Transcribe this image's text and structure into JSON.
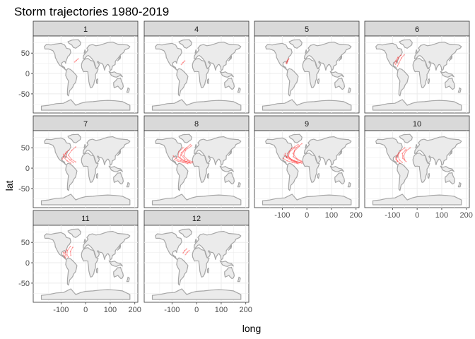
{
  "chart_data": {
    "type": "scatter",
    "title": "Storm trajectories 1980-2019",
    "xlabel": "long",
    "ylabel": "lat",
    "xlim": [
      -190,
      195
    ],
    "ylim": [
      -90,
      85
    ],
    "x_ticks": [
      -100,
      0,
      100,
      200
    ],
    "y_ticks": [
      -50,
      0,
      50
    ],
    "x_tick_labels": [
      "-100",
      "0",
      "100",
      "200"
    ],
    "y_tick_labels": [
      "-50",
      "0",
      "50"
    ],
    "grid": true,
    "background": "world-map",
    "facet_variable": "month",
    "panels": [
      {
        "label": "1",
        "tracks": [
          [
            [
              -45,
              28
            ],
            [
              -38,
              32
            ],
            [
              -30,
              36
            ]
          ]
        ]
      },
      {
        "label": "4",
        "tracks": [
          [
            [
              -62,
              22
            ],
            [
              -55,
              27
            ],
            [
              -48,
              31
            ]
          ]
        ]
      },
      {
        "label": "5",
        "tracks": [
          [
            [
              -82,
              24
            ],
            [
              -78,
              30
            ],
            [
              -73,
              36
            ]
          ],
          [
            [
              -85,
              26
            ],
            [
              -80,
              31
            ],
            [
              -76,
              35
            ]
          ]
        ]
      },
      {
        "label": "6",
        "tracks": [
          [
            [
              -88,
              22
            ],
            [
              -83,
              30
            ],
            [
              -76,
              38
            ],
            [
              -66,
              45
            ]
          ],
          [
            [
              -92,
              25
            ],
            [
              -86,
              32
            ],
            [
              -78,
              40
            ]
          ],
          [
            [
              -80,
              18
            ],
            [
              -74,
              26
            ],
            [
              -64,
              38
            ],
            [
              -52,
              46
            ]
          ]
        ]
      },
      {
        "label": "7",
        "tracks": [
          [
            [
              -50,
              14
            ],
            [
              -64,
              20
            ],
            [
              -78,
              28
            ],
            [
              -82,
              36
            ],
            [
              -70,
              44
            ]
          ],
          [
            [
              -60,
              12
            ],
            [
              -75,
              18
            ],
            [
              -88,
              26
            ],
            [
              -90,
              34
            ]
          ],
          [
            [
              -40,
              15
            ],
            [
              -58,
              22
            ],
            [
              -70,
              32
            ],
            [
              -56,
              44
            ],
            [
              -40,
              52
            ]
          ],
          [
            [
              -95,
              22
            ],
            [
              -88,
              30
            ],
            [
              -78,
              40
            ]
          ]
        ]
      },
      {
        "label": "8",
        "tracks": [
          [
            [
              -20,
              13
            ],
            [
              -40,
              16
            ],
            [
              -60,
              20
            ],
            [
              -75,
              28
            ],
            [
              -72,
              40
            ],
            [
              -55,
              50
            ]
          ],
          [
            [
              -25,
              12
            ],
            [
              -45,
              15
            ],
            [
              -65,
              18
            ],
            [
              -85,
              24
            ],
            [
              -95,
              30
            ]
          ],
          [
            [
              -30,
              14
            ],
            [
              -50,
              18
            ],
            [
              -68,
              26
            ],
            [
              -62,
              38
            ],
            [
              -40,
              50
            ]
          ],
          [
            [
              -35,
              11
            ],
            [
              -55,
              14
            ],
            [
              -75,
              17
            ],
            [
              -90,
              21
            ]
          ],
          [
            [
              -15,
              15
            ],
            [
              -35,
              20
            ],
            [
              -52,
              30
            ],
            [
              -45,
              44
            ],
            [
              -20,
              55
            ]
          ],
          [
            [
              -28,
              16
            ],
            [
              -48,
              22
            ],
            [
              -62,
              32
            ],
            [
              -48,
              46
            ],
            [
              -25,
              58
            ]
          ]
        ]
      },
      {
        "label": "9",
        "tracks": [
          [
            [
              -20,
              12
            ],
            [
              -40,
              15
            ],
            [
              -60,
              20
            ],
            [
              -75,
              28
            ],
            [
              -70,
              40
            ],
            [
              -50,
              50
            ]
          ],
          [
            [
              -25,
              14
            ],
            [
              -45,
              17
            ],
            [
              -65,
              22
            ],
            [
              -82,
              28
            ],
            [
              -92,
              32
            ]
          ],
          [
            [
              -30,
              13
            ],
            [
              -52,
              17
            ],
            [
              -70,
              24
            ],
            [
              -78,
              36
            ],
            [
              -62,
              48
            ],
            [
              -35,
              58
            ]
          ],
          [
            [
              -18,
              15
            ],
            [
              -38,
              20
            ],
            [
              -55,
              28
            ],
            [
              -50,
              42
            ],
            [
              -30,
              54
            ]
          ],
          [
            [
              -35,
              11
            ],
            [
              -58,
              14
            ],
            [
              -80,
              18
            ],
            [
              -96,
              24
            ]
          ],
          [
            [
              -22,
              17
            ],
            [
              -42,
              24
            ],
            [
              -56,
              36
            ],
            [
              -44,
              50
            ],
            [
              -20,
              60
            ]
          ],
          [
            [
              -40,
              13
            ],
            [
              -62,
              18
            ],
            [
              -84,
              26
            ],
            [
              -88,
              36
            ]
          ]
        ]
      },
      {
        "label": "10",
        "tracks": [
          [
            [
              -60,
              14
            ],
            [
              -72,
              20
            ],
            [
              -78,
              30
            ],
            [
              -68,
              42
            ],
            [
              -50,
              50
            ]
          ],
          [
            [
              -80,
              16
            ],
            [
              -86,
              22
            ],
            [
              -84,
              30
            ],
            [
              -74,
              38
            ]
          ],
          [
            [
              -45,
              16
            ],
            [
              -58,
              24
            ],
            [
              -60,
              36
            ],
            [
              -45,
              46
            ]
          ],
          [
            [
              -70,
              12
            ],
            [
              -80,
              18
            ],
            [
              -88,
              26
            ]
          ],
          [
            [
              -50,
              20
            ],
            [
              -55,
              30
            ],
            [
              -45,
              42
            ],
            [
              -28,
              50
            ]
          ]
        ]
      },
      {
        "label": "11",
        "tracks": [
          [
            [
              -70,
              14
            ],
            [
              -76,
              20
            ],
            [
              -74,
              30
            ],
            [
              -62,
              40
            ]
          ],
          [
            [
              -80,
              16
            ],
            [
              -84,
              24
            ],
            [
              -78,
              32
            ]
          ],
          [
            [
              -60,
              18
            ],
            [
              -62,
              28
            ],
            [
              -52,
              38
            ]
          ],
          [
            [
              -82,
              12
            ],
            [
              -88,
              18
            ],
            [
              -90,
              26
            ]
          ]
        ]
      },
      {
        "label": "12",
        "tracks": [
          [
            [
              -55,
              24
            ],
            [
              -48,
              30
            ],
            [
              -40,
              34
            ]
          ],
          [
            [
              -45,
              20
            ],
            [
              -38,
              26
            ],
            [
              -30,
              30
            ]
          ]
        ]
      }
    ],
    "colors": {
      "track": "#ff2a2a",
      "land_fill": "#ebebeb",
      "land_stroke": "#a6a6a6",
      "strip_fill": "#d9d9d9",
      "panel_border": "#333333",
      "grid": "#ebebeb"
    }
  }
}
